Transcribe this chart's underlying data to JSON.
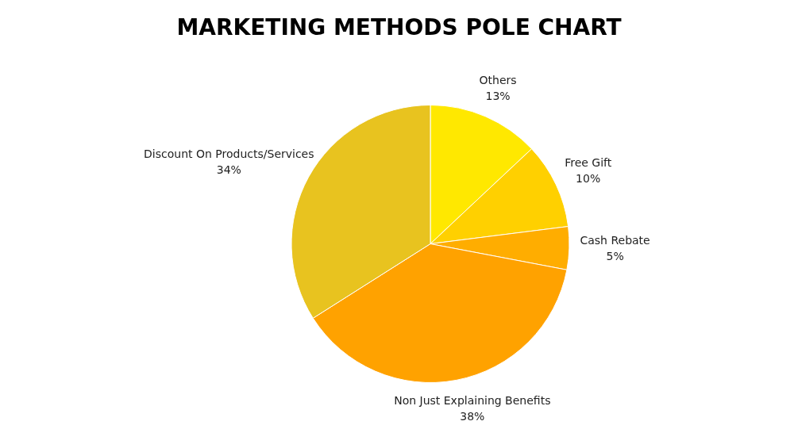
{
  "chart_data": {
    "type": "pie",
    "title": "MARKETING METHODS POLE CHART",
    "categories": [
      "Others",
      "Free Gift",
      "Cash Rebate",
      "Non Just Explaining Benefits",
      "Discount On Products/Services"
    ],
    "values": [
      13,
      10,
      5,
      38,
      34
    ],
    "value_labels": [
      "13%",
      "10%",
      "5%",
      "38%",
      "34%"
    ],
    "colors": [
      "#ffe800",
      "#ffd000",
      "#ffad00",
      "#ffa200",
      "#e8c31f"
    ],
    "legend": false
  }
}
